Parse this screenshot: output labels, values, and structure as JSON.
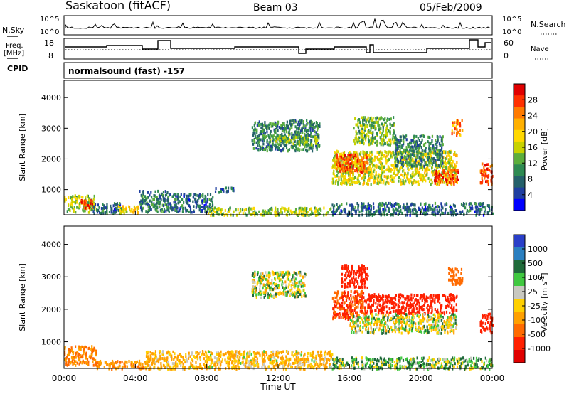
{
  "header": {
    "station": "Saskatoon (fitACF)",
    "beam": "Beam 03",
    "date": "05/Feb/2009"
  },
  "left_labels": {
    "nsky": "N.Sky",
    "freq_line1": "Freq.",
    "freq_line2": "[MHz]",
    "cpid": "CPID"
  },
  "right_labels": {
    "nsearch": "N.Search",
    "nave": "Nave"
  },
  "strip_ticks": {
    "nsky_top": "10^5",
    "nsky_bottom": "10^0",
    "nsearch_top": "10^5",
    "nsearch_bottom": "10^0",
    "freq": [
      "18",
      "8"
    ],
    "nave": [
      "60",
      "0"
    ]
  },
  "cpid_text": "normalsound (fast) -157",
  "time_axis": {
    "label": "Time UT",
    "ticks": [
      "00:00",
      "04:00",
      "08:00",
      "12:00",
      "16:00",
      "20:00",
      "00:00"
    ]
  },
  "chart_data": [
    {
      "type": "heatmap",
      "panel": "power",
      "ylabel": "Slant Range [km]",
      "yticks": [
        "1000",
        "2000",
        "3000",
        "4000"
      ],
      "ylim": [
        180,
        4560
      ],
      "xlim_hours": [
        0,
        24
      ],
      "colorbar_label": "Power [dB]",
      "colorbar_ticks": [
        "28",
        "24",
        "20",
        "16",
        "12",
        "8",
        "4"
      ],
      "colorbar_colors": [
        "#e00000",
        "#ff3000",
        "#ff7a00",
        "#ffb000",
        "#ffd800",
        "#c8d200",
        "#5cae3c",
        "#2e8a52",
        "#24606a",
        "#1f3ea0",
        "#0000ff"
      ],
      "patches": [
        {
          "x": [
            0.0,
            1.7
          ],
          "y": [
            300,
            850
          ],
          "v": 14
        },
        {
          "x": [
            0.9,
            1.6
          ],
          "y": [
            400,
            700
          ],
          "v": 28
        },
        {
          "x": [
            1.6,
            3.2
          ],
          "y": [
            250,
            600
          ],
          "v": 6
        },
        {
          "x": [
            3.0,
            4.2
          ],
          "y": [
            250,
            500
          ],
          "v": 18
        },
        {
          "x": [
            4.2,
            5.9
          ],
          "y": [
            300,
            1000
          ],
          "v": 8
        },
        {
          "x": [
            5.9,
            8.3
          ],
          "y": [
            300,
            900
          ],
          "v": 6
        },
        {
          "x": [
            8.3,
            9.5
          ],
          "y": [
            950,
            1100
          ],
          "v": 6
        },
        {
          "x": [
            8.0,
            15.0
          ],
          "y": [
            200,
            450
          ],
          "v": 14
        },
        {
          "x": [
            10.5,
            14.3
          ],
          "y": [
            2300,
            3300
          ],
          "v": 8
        },
        {
          "x": [
            11.5,
            14.2
          ],
          "y": [
            2500,
            2800
          ],
          "v": 12
        },
        {
          "x": [
            15.0,
            22.0
          ],
          "y": [
            1200,
            2300
          ],
          "v": 16
        },
        {
          "x": [
            15.2,
            17.0
          ],
          "y": [
            1600,
            2200
          ],
          "v": 26
        },
        {
          "x": [
            16.2,
            18.5
          ],
          "y": [
            2500,
            3400
          ],
          "v": 12
        },
        {
          "x": [
            18.5,
            21.2
          ],
          "y": [
            1800,
            2800
          ],
          "v": 8
        },
        {
          "x": [
            20.7,
            22.1
          ],
          "y": [
            1200,
            1700
          ],
          "v": 26
        },
        {
          "x": [
            21.7,
            22.3
          ],
          "y": [
            2800,
            3300
          ],
          "v": 22
        },
        {
          "x": [
            23.3,
            24.0
          ],
          "y": [
            1200,
            1900
          ],
          "v": 26
        },
        {
          "x": [
            15.0,
            24.0
          ],
          "y": [
            200,
            600
          ],
          "v": 6
        }
      ]
    },
    {
      "type": "heatmap",
      "panel": "velocity",
      "ylabel": "Slant Range [km]",
      "yticks": [
        "1000",
        "2000",
        "3000",
        "4000"
      ],
      "ylim": [
        180,
        4560
      ],
      "xlim_hours": [
        0,
        24
      ],
      "colorbar_label": "Velocity [m s^-1]",
      "colorbar_ticks": [
        "1000",
        "500",
        "100",
        "25",
        "-25",
        "-100",
        "-500",
        "-1000"
      ],
      "colorbar_colors": [
        "#2a3fc8",
        "#2a7fc0",
        "#1f6a3a",
        "#40c840",
        "#c8c8c0",
        "#ffd000",
        "#ffa000",
        "#ff6a00",
        "#ff2000",
        "#e00000"
      ],
      "patches": [
        {
          "x": [
            0.0,
            1.8
          ],
          "y": [
            300,
            900
          ],
          "v": -200
        },
        {
          "x": [
            1.8,
            4.5
          ],
          "y": [
            200,
            450
          ],
          "v": -150
        },
        {
          "x": [
            4.5,
            15.0
          ],
          "y": [
            200,
            750
          ],
          "v": -80
        },
        {
          "x": [
            10.5,
            13.5
          ],
          "y": [
            2400,
            3200
          ],
          "v": 0
        },
        {
          "x": [
            15.0,
            17.0
          ],
          "y": [
            1700,
            2600
          ],
          "v": -400
        },
        {
          "x": [
            15.5,
            17.0
          ],
          "y": [
            2700,
            3400
          ],
          "v": -600
        },
        {
          "x": [
            17.0,
            22.0
          ],
          "y": [
            1900,
            2500
          ],
          "v": -500
        },
        {
          "x": [
            16.0,
            22.0
          ],
          "y": [
            1300,
            1900
          ],
          "v": 0
        },
        {
          "x": [
            21.5,
            22.3
          ],
          "y": [
            2800,
            3300
          ],
          "v": -300
        },
        {
          "x": [
            23.3,
            24.0
          ],
          "y": [
            1300,
            1900
          ],
          "v": -500
        },
        {
          "x": [
            15.0,
            24.0
          ],
          "y": [
            200,
            550
          ],
          "v": 50
        }
      ]
    }
  ]
}
